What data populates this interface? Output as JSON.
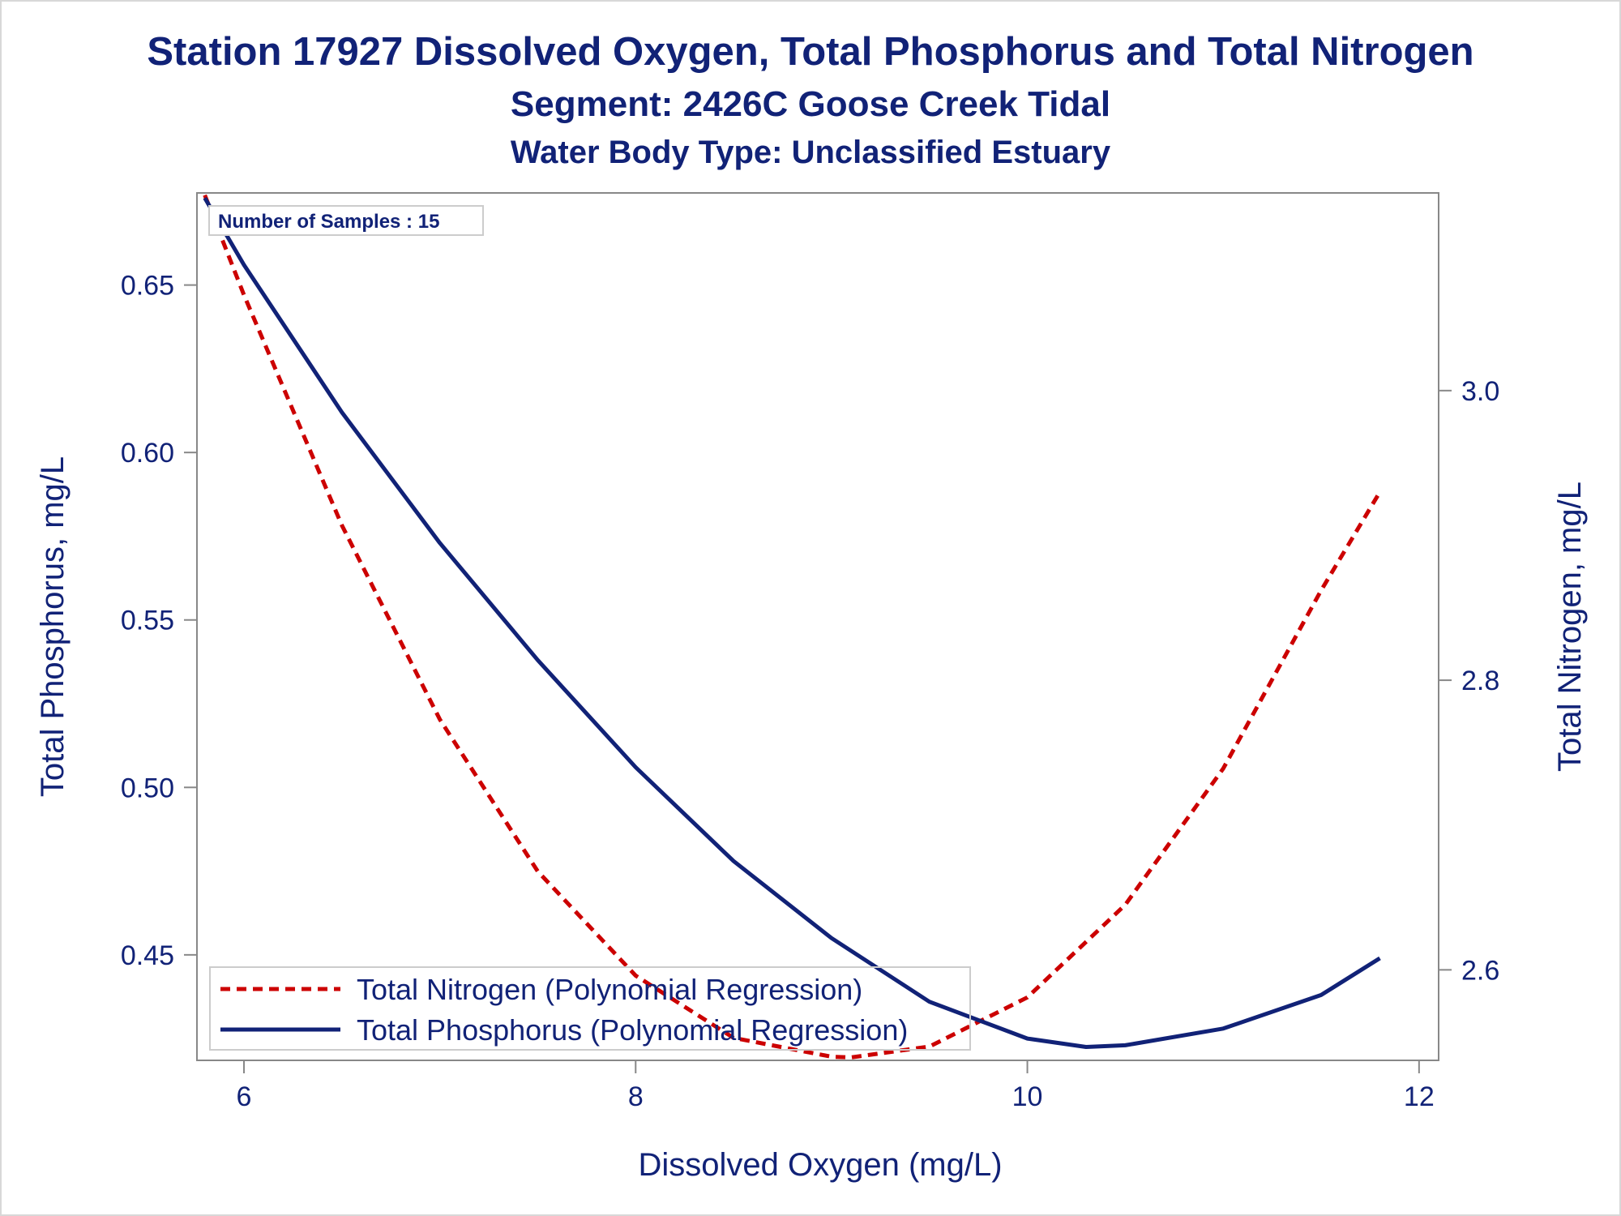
{
  "title": "Station 17927  Dissolved Oxygen, Total Phosphorus and Total Nitrogen",
  "subtitle": "Segment: 2426C  Goose Creek Tidal",
  "subtitle2": "Water Body Type: Unclassified Estuary",
  "colors": {
    "text": "#112277",
    "phosphorus": "#112277",
    "nitrogen": "#cc0000",
    "axis": "#888888"
  },
  "chart_data": {
    "type": "line",
    "title": "Station 17927  Dissolved Oxygen, Total Phosphorus and Total Nitrogen",
    "xlabel": "Dissolved Oxygen (mg/L)",
    "ylabel": "Total Phosphorus, mg/L",
    "y2label": "Total Nitrogen, mg/L",
    "xlim": [
      5.76,
      12.1
    ],
    "ylim": [
      0.4185,
      0.6775
    ],
    "y2lim": [
      2.5375,
      3.1365
    ],
    "xticks": [
      "6",
      "8",
      "10",
      "12"
    ],
    "yticks": [
      "0.45",
      "0.50",
      "0.55",
      "0.60",
      "0.65"
    ],
    "y2ticks": [
      "2.6",
      "2.8",
      "3.0"
    ],
    "annotation": "Number of Samples : 15",
    "legend_position": "bottom-left",
    "grid": false,
    "series": [
      {
        "name": "Total Nitrogen (Polynomial Regression)",
        "axis": "right",
        "style": "dashed",
        "color": "#cc0000",
        "x": [
          5.8,
          6.0,
          6.5,
          7.0,
          7.5,
          8.0,
          8.5,
          9.0,
          9.1,
          9.5,
          10.0,
          10.5,
          11.0,
          11.5,
          11.8
        ],
        "y": [
          3.135,
          3.066,
          2.907,
          2.773,
          2.668,
          2.596,
          2.553,
          2.54,
          2.5395,
          2.547,
          2.581,
          2.645,
          2.739,
          2.862,
          2.93
        ]
      },
      {
        "name": "Total Phosphorus (Polynomial Regression)",
        "axis": "left",
        "style": "solid",
        "color": "#112277",
        "x": [
          5.8,
          6.0,
          6.5,
          7.0,
          7.5,
          8.0,
          8.5,
          9.0,
          9.5,
          10.0,
          10.3,
          10.5,
          11.0,
          11.5,
          11.8
        ],
        "y": [
          0.676,
          0.656,
          0.612,
          0.573,
          0.538,
          0.506,
          0.478,
          0.455,
          0.436,
          0.425,
          0.4225,
          0.423,
          0.428,
          0.438,
          0.449
        ]
      }
    ]
  }
}
